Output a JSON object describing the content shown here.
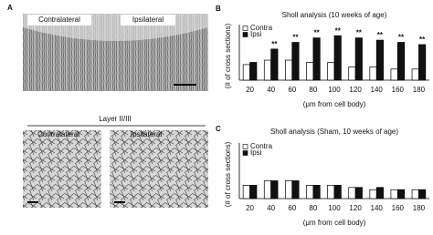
{
  "panels": {
    "a": "A",
    "b": "B",
    "c": "C"
  },
  "images": {
    "top_left": "Contralateral",
    "top_right": "Ipsilateral",
    "layer": "Layer II/III",
    "bottom_left": "Contralateral",
    "bottom_right": "Ipsilateral"
  },
  "chart_data": [
    {
      "type": "bar",
      "title": "Sholl analysis (10 weeks of age)",
      "x_label": "(μm from cell body)",
      "y_label": "(# of cross sections)",
      "categories": [
        "20",
        "40",
        "60",
        "80",
        "100",
        "120",
        "140",
        "160",
        "180"
      ],
      "series": [
        {
          "name": "Contra",
          "color": "#ffffff",
          "values": [
            7,
            9,
            9,
            8,
            8,
            6,
            6,
            5,
            5
          ]
        },
        {
          "name": "Ipsi",
          "color": "#111111",
          "values": [
            8,
            14,
            17,
            19,
            20,
            19,
            18,
            17,
            16
          ]
        }
      ],
      "annotations": [
        null,
        "**",
        "**",
        "**",
        "**",
        "**",
        "**",
        "**",
        "**"
      ],
      "ylim": [
        0,
        25
      ],
      "legend": "upper-left"
    },
    {
      "type": "bar",
      "title": "Sholl analysis (Sham, 10 weeks of age)",
      "x_label": "(μm from cell body)",
      "y_label": "(# of cross sections)",
      "categories": [
        "20",
        "40",
        "60",
        "80",
        "100",
        "120",
        "140",
        "160",
        "180"
      ],
      "series": [
        {
          "name": "Contra",
          "color": "#ffffff",
          "values": [
            6,
            8,
            8,
            6,
            6,
            5,
            4,
            4,
            4
          ]
        },
        {
          "name": "Ipsi",
          "color": "#111111",
          "values": [
            6,
            8,
            8,
            6,
            6,
            5,
            5,
            4,
            4
          ]
        }
      ],
      "ylim": [
        0,
        25
      ],
      "legend": "upper-left"
    }
  ]
}
